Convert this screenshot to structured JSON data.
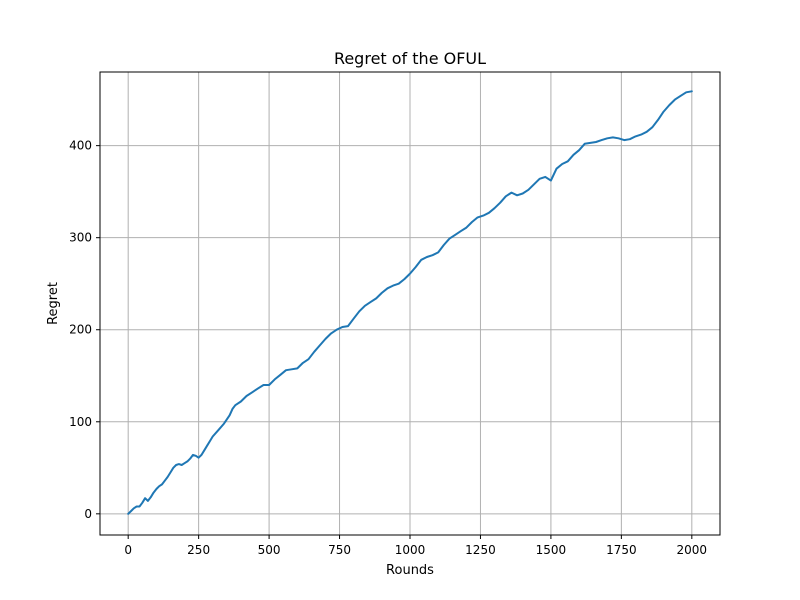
{
  "chart_data": {
    "type": "line",
    "title": "Regret of the OFUL",
    "xlabel": "Rounds",
    "ylabel": "Regret",
    "xlim": [
      -100,
      2100
    ],
    "ylim": [
      -23,
      480
    ],
    "xticks": [
      0,
      250,
      500,
      750,
      1000,
      1250,
      1500,
      1750,
      2000
    ],
    "xtick_labels": [
      "0",
      "250",
      "500",
      "750",
      "1000",
      "1250",
      "1500",
      "1750",
      "2000"
    ],
    "yticks": [
      0,
      100,
      200,
      300,
      400
    ],
    "ytick_labels": [
      "0",
      "100",
      "200",
      "300",
      "400"
    ],
    "grid": true,
    "line_color": "#1f77b4",
    "grid_color": "#b0b0b0",
    "series": [
      {
        "name": "",
        "x": [
          0,
          10,
          20,
          30,
          40,
          50,
          60,
          70,
          80,
          90,
          100,
          110,
          120,
          130,
          140,
          150,
          160,
          170,
          180,
          190,
          200,
          210,
          220,
          230,
          240,
          250,
          260,
          270,
          280,
          290,
          300,
          320,
          340,
          360,
          370,
          380,
          400,
          420,
          440,
          460,
          480,
          500,
          520,
          540,
          560,
          580,
          600,
          620,
          640,
          660,
          680,
          700,
          720,
          740,
          760,
          780,
          800,
          820,
          840,
          860,
          880,
          900,
          920,
          940,
          960,
          980,
          1000,
          1020,
          1040,
          1060,
          1080,
          1100,
          1120,
          1140,
          1160,
          1180,
          1200,
          1220,
          1240,
          1260,
          1280,
          1300,
          1320,
          1340,
          1360,
          1380,
          1400,
          1420,
          1440,
          1460,
          1480,
          1500,
          1520,
          1540,
          1560,
          1580,
          1600,
          1620,
          1640,
          1660,
          1680,
          1700,
          1720,
          1740,
          1760,
          1780,
          1800,
          1820,
          1840,
          1860,
          1880,
          1900,
          1920,
          1940,
          1960,
          1980,
          2000
        ],
        "y": [
          0,
          3,
          6,
          8,
          8,
          12,
          17,
          14,
          18,
          23,
          27,
          30,
          32,
          36,
          40,
          45,
          50,
          53,
          54,
          53,
          55,
          57,
          60,
          64,
          63,
          61,
          64,
          69,
          74,
          79,
          84,
          91,
          98,
          107,
          114,
          118,
          122,
          128,
          132,
          136,
          140,
          140,
          146,
          151,
          156,
          157,
          158,
          164,
          168,
          176,
          183,
          190,
          196,
          200,
          203,
          204,
          212,
          220,
          226,
          230,
          234,
          240,
          245,
          248,
          250,
          255,
          261,
          268,
          276,
          279,
          281,
          284,
          292,
          299,
          303,
          307,
          311,
          317,
          322,
          324,
          327,
          332,
          338,
          345,
          349,
          346,
          348,
          352,
          358,
          364,
          366,
          362,
          375,
          380,
          383,
          390,
          395,
          402,
          403,
          404,
          406,
          408,
          409,
          408,
          406,
          407,
          410,
          412,
          415,
          420,
          428,
          437,
          444,
          450,
          454,
          458,
          459
        ]
      }
    ]
  }
}
